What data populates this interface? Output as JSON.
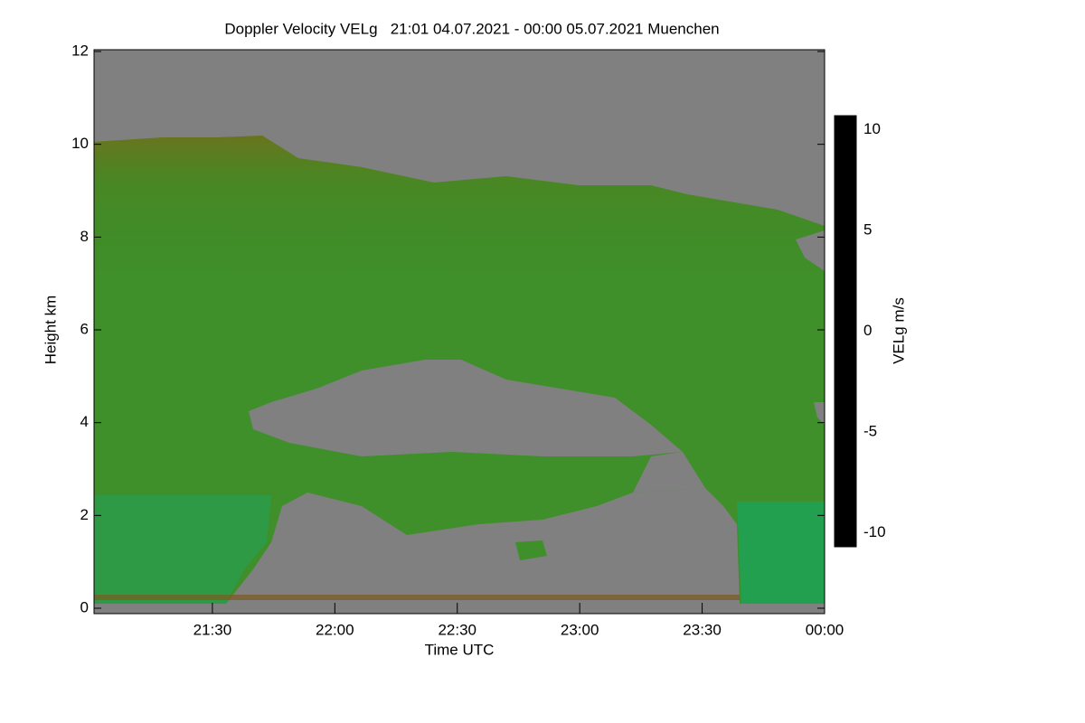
{
  "chart_data": {
    "type": "heatmap",
    "title": "Doppler Velocity VELg   21:01 04.07.2021 - 00:00 05.07.2021 Muenchen",
    "x_label": "Time UTC",
    "y_label": "Height km",
    "xlim": [
      1261,
      1440
    ],
    "xticks": [
      {
        "value": 1290,
        "label": "21:30"
      },
      {
        "value": 1320,
        "label": "22:00"
      },
      {
        "value": 1350,
        "label": "22:30"
      },
      {
        "value": 1380,
        "label": "23:00"
      },
      {
        "value": 1410,
        "label": "23:30"
      },
      {
        "value": 1440,
        "label": "00:00"
      }
    ],
    "ylim": [
      0,
      12
    ],
    "yticks": [
      0,
      2,
      4,
      6,
      8,
      10,
      12
    ],
    "background": "#808080",
    "colorbar": {
      "label": "VELg m/s",
      "lim": [
        -10.7,
        10.7
      ],
      "ticks": [
        -10,
        -5,
        0,
        5,
        10
      ],
      "colormap": [
        "#000000",
        "#0b2a70",
        "#0f8f8a",
        "#12a040",
        "#2f9a20",
        "#6a6412",
        "#c01212",
        "#e06a00",
        "#f2b400",
        "#ffff00"
      ]
    }
  }
}
